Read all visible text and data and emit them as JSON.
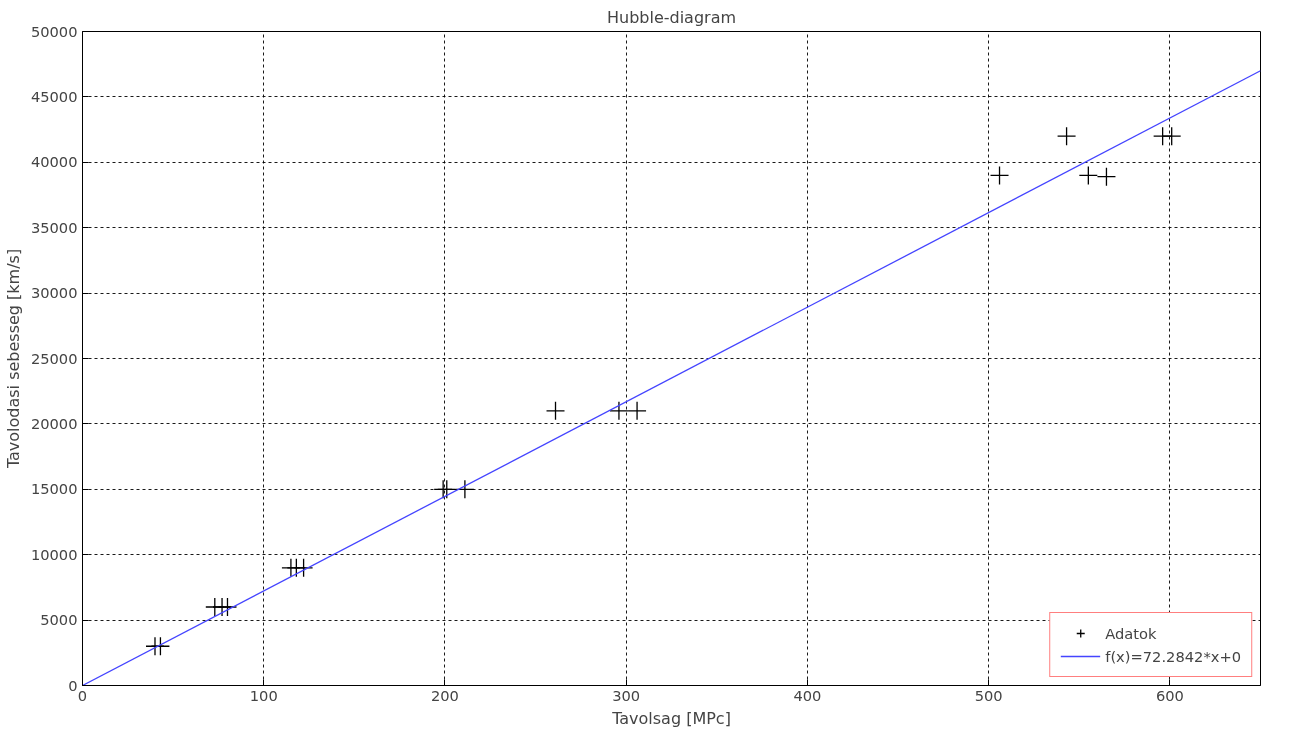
{
  "chart_data": {
    "type": "scatter",
    "title": "Hubble-diagram",
    "xlabel": "Tavolsag [MPc]",
    "ylabel": "Tavolodasi sebesseg [km/s]",
    "xlim": [
      0,
      650
    ],
    "ylim": [
      0,
      50000
    ],
    "xticks": [
      0,
      100,
      200,
      300,
      400,
      500,
      600
    ],
    "yticks": [
      0,
      5000,
      10000,
      15000,
      20000,
      25000,
      30000,
      35000,
      40000,
      45000,
      50000
    ],
    "grid": true,
    "legend": "bottom right",
    "series": [
      {
        "name": "Adatok",
        "color": "#000000",
        "marker": "cross",
        "x": [
          40,
          43,
          73,
          77,
          80,
          115,
          118,
          122,
          199,
          201,
          211,
          261,
          296,
          306,
          506,
          543,
          555,
          565,
          596,
          601
        ],
        "values": [
          3000,
          3000,
          6000,
          6000,
          6000,
          9000,
          9000,
          9000,
          15000,
          15000,
          15000,
          21000,
          21000,
          21000,
          39000,
          42000,
          39000,
          38900,
          42000,
          42000
        ]
      },
      {
        "name": "f(x)=72.2842*x+0",
        "type": "line",
        "color": "#4444ff",
        "marker": "none",
        "line_style": "solid",
        "x": [
          0,
          650
        ],
        "values": [
          0,
          47000
        ]
      }
    ]
  }
}
